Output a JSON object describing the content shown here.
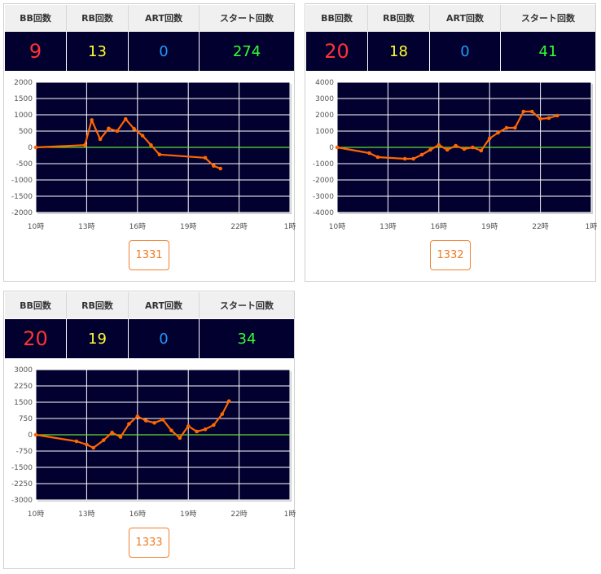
{
  "headers": {
    "bb": "BB回数",
    "rb": "RB回数",
    "art": "ART回数",
    "start": "スタート回数"
  },
  "colors": {
    "bg": "#02002f",
    "grid": "#ffffff",
    "zero": "#66dd33",
    "line": "#ff6600",
    "bb": "#ff3333",
    "rb": "#ffff33",
    "art": "#2299ff",
    "start": "#33ff33"
  },
  "machines": [
    {
      "bb": "9",
      "rb": "13",
      "art": "0",
      "start": "274",
      "button_label": "1331",
      "chart_data": {
        "type": "line",
        "title": "",
        "xlabel": "",
        "ylabel": "",
        "xlim": [
          10,
          25
        ],
        "ylim": [
          -2000,
          2000
        ],
        "xticks": [
          10,
          13,
          16,
          19,
          22,
          25
        ],
        "xtick_labels": [
          "10時",
          "13時",
          "16時",
          "19時",
          "22時",
          "1時"
        ],
        "yticks": [
          2000,
          1500,
          1000,
          500,
          0,
          -500,
          -1000,
          -1500,
          -2000
        ],
        "ytick_labels": [
          "2000",
          "1500",
          "1000",
          "500",
          "0",
          "-500",
          "-1000",
          "-1500",
          "-2000"
        ],
        "grid": true,
        "series": [
          {
            "x": [
              10.0,
              12.9,
              13.3,
              13.8,
              14.3,
              14.8,
              15.3,
              15.8,
              16.3,
              16.8,
              17.3,
              20.0,
              20.5,
              20.9
            ],
            "y": [
              0,
              70,
              840,
              250,
              580,
              500,
              870,
              570,
              360,
              70,
              -220,
              -320,
              -570,
              -650
            ]
          }
        ]
      }
    },
    {
      "bb": "20",
      "rb": "18",
      "art": "0",
      "start": "41",
      "button_label": "1332",
      "chart_data": {
        "type": "line",
        "title": "",
        "xlabel": "",
        "ylabel": "",
        "xlim": [
          10,
          25
        ],
        "ylim": [
          -4000,
          4000
        ],
        "xticks": [
          10,
          13,
          16,
          19,
          22,
          25
        ],
        "xtick_labels": [
          "10時",
          "13時",
          "16時",
          "19時",
          "22時",
          "1時"
        ],
        "yticks": [
          4000,
          3000,
          2000,
          1000,
          0,
          -1000,
          -2000,
          -3000,
          -4000
        ],
        "ytick_labels": [
          "4000",
          "3000",
          "2000",
          "1000",
          "0",
          "-1000",
          "-2000",
          "-3000",
          "-4000"
        ],
        "grid": true,
        "series": [
          {
            "x": [
              10.0,
              11.9,
              12.4,
              14.0,
              14.5,
              15.0,
              15.5,
              16.0,
              16.5,
              17.0,
              17.5,
              18.0,
              18.5,
              19.0,
              19.5,
              20.0,
              20.5,
              21.0,
              21.5,
              22.0,
              22.5,
              23.0
            ],
            "y": [
              0,
              -350,
              -600,
              -700,
              -700,
              -450,
              -150,
              150,
              -150,
              100,
              -100,
              0,
              -200,
              550,
              900,
              1200,
              1200,
              2200,
              2200,
              1750,
              1800,
              1950
            ]
          }
        ]
      }
    },
    {
      "bb": "20",
      "rb": "19",
      "art": "0",
      "start": "34",
      "button_label": "1333",
      "chart_data": {
        "type": "line",
        "title": "",
        "xlabel": "",
        "ylabel": "",
        "xlim": [
          10,
          25
        ],
        "ylim": [
          -3000,
          3000
        ],
        "xticks": [
          10,
          13,
          16,
          19,
          22,
          25
        ],
        "xtick_labels": [
          "10時",
          "13時",
          "16時",
          "19時",
          "22時",
          "1時"
        ],
        "yticks": [
          3000,
          2250,
          1500,
          750,
          0,
          -750,
          -1500,
          -2250,
          -3000
        ],
        "ytick_labels": [
          "3000",
          "2250",
          "1500",
          "750",
          "0",
          "-750",
          "-1500",
          "-2250",
          "-3000"
        ],
        "grid": true,
        "series": [
          {
            "x": [
              10.0,
              12.4,
              13.0,
              13.4,
              14.0,
              14.5,
              15.0,
              15.5,
              16.0,
              16.5,
              17.0,
              17.5,
              18.0,
              18.5,
              19.0,
              19.5,
              20.0,
              20.5,
              21.0,
              21.4
            ],
            "y": [
              0,
              -300,
              -450,
              -600,
              -250,
              100,
              -100,
              500,
              850,
              650,
              550,
              700,
              200,
              -150,
              400,
              150,
              250,
              450,
              950,
              1550
            ]
          }
        ]
      }
    }
  ]
}
